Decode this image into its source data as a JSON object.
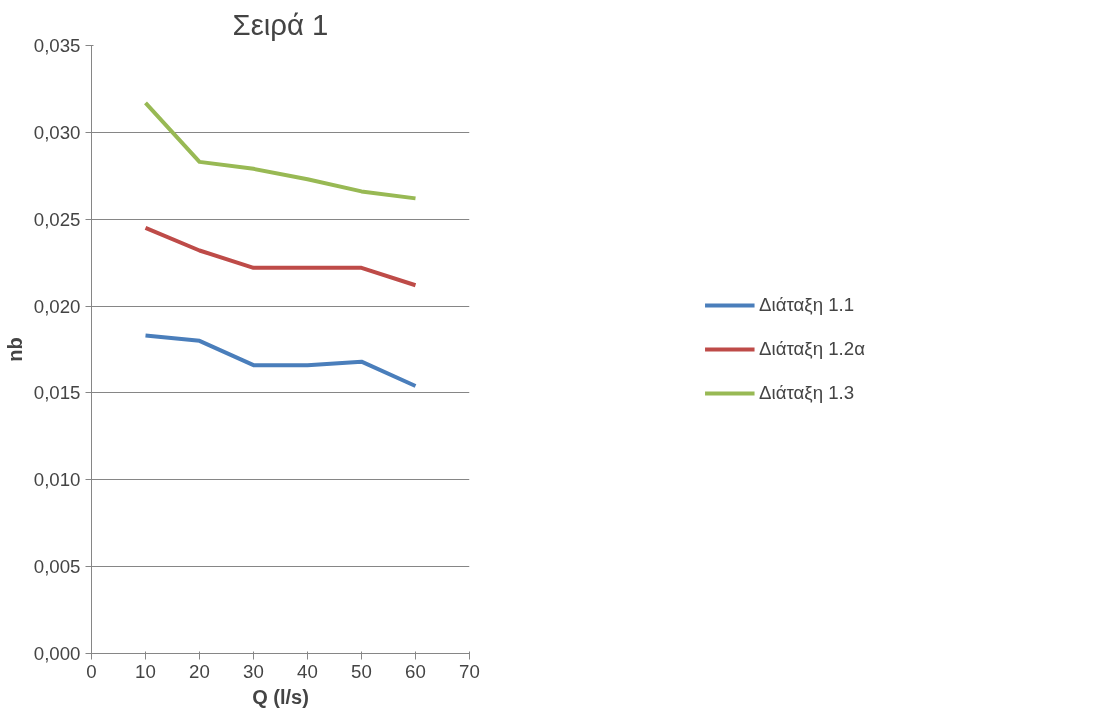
{
  "chart_data": {
    "type": "line",
    "title": "Σειρά 1",
    "xlabel": "Q (l/s)",
    "ylabel": "nb",
    "x": [
      10,
      20,
      30,
      40,
      50,
      60
    ],
    "series": [
      {
        "name": "Διάταξη 1.1",
        "color": "#4a7ebb",
        "values": [
          0.0183,
          0.018,
          0.0166,
          0.0166,
          0.0168,
          0.0154
        ]
      },
      {
        "name": "Διάταξη 1.2α",
        "color": "#be4b48",
        "values": [
          0.0245,
          0.0232,
          0.0222,
          0.0222,
          0.0222,
          0.0212
        ]
      },
      {
        "name": "Διάταξη 1.3",
        "color": "#98b954",
        "values": [
          0.0317,
          0.0283,
          0.0279,
          0.0273,
          0.0266,
          0.0262
        ]
      }
    ],
    "xlim": [
      0,
      70
    ],
    "xticks": [
      0,
      10,
      20,
      30,
      40,
      50,
      60,
      70
    ],
    "ylim": [
      0,
      0.035
    ],
    "yticks": [
      {
        "value": 0,
        "label": "0,000"
      },
      {
        "value": 0.005,
        "label": "0,005"
      },
      {
        "value": 0.01,
        "label": "0,010"
      },
      {
        "value": 0.015,
        "label": "0,015"
      },
      {
        "value": 0.02,
        "label": "0,020"
      },
      {
        "value": 0.025,
        "label": "0,025"
      },
      {
        "value": 0.03,
        "label": "0,030"
      },
      {
        "value": 0.035,
        "label": "0,035"
      }
    ],
    "grid": "y",
    "legend": "right",
    "marker": "none",
    "line_style": "solid"
  }
}
